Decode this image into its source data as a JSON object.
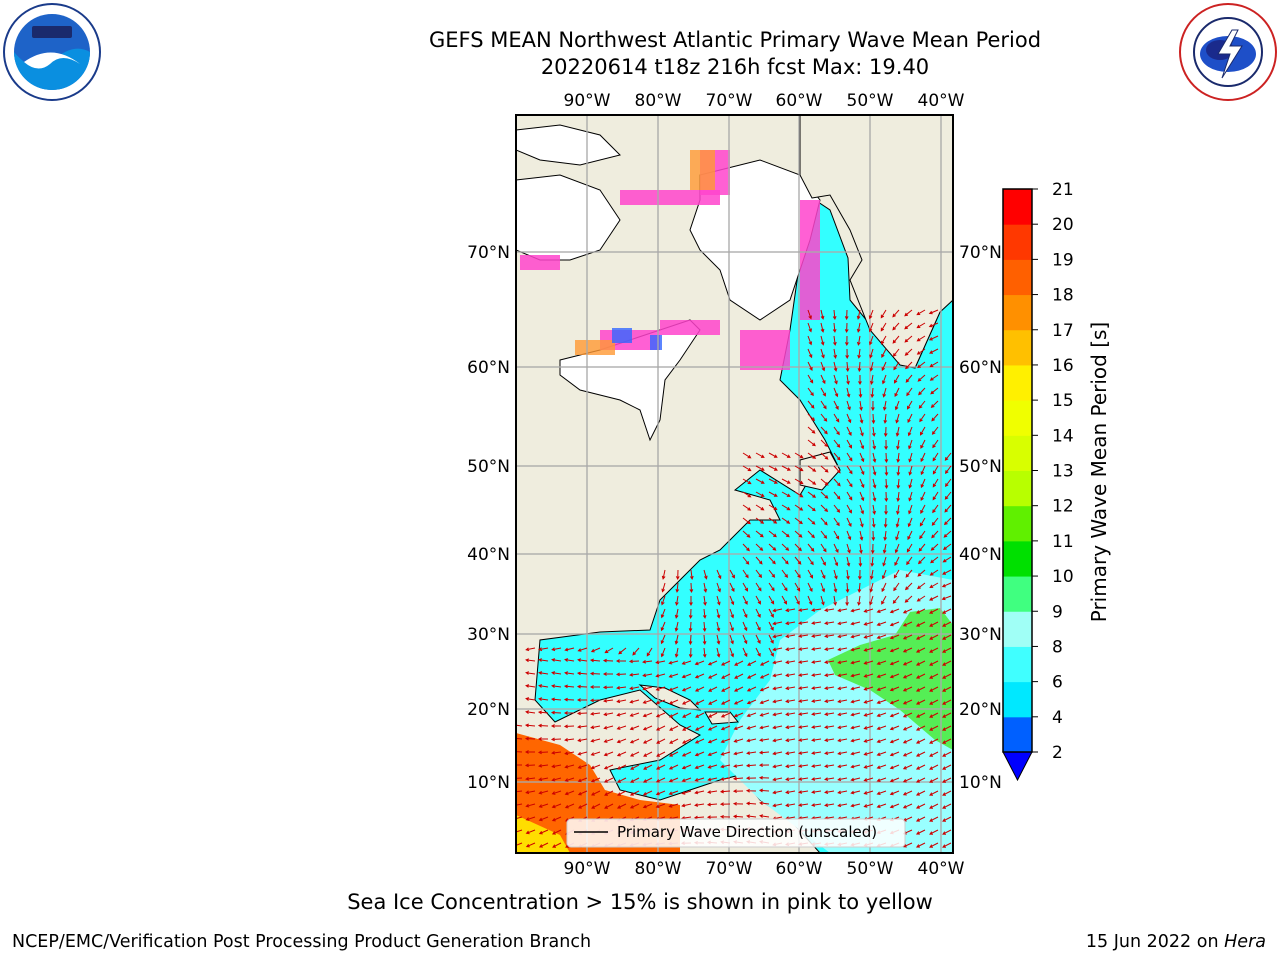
{
  "header": {
    "title_line1": "GEFS MEAN Northwest Atlantic Primary Wave Mean Period",
    "title_line2": "20220614 t18z 216h fcst   Max: 19.40"
  },
  "logos": {
    "left": "noaa-logo",
    "right": "nws-logo"
  },
  "map": {
    "lon_labels": [
      "90°W",
      "80°W",
      "70°W",
      "60°W",
      "50°W",
      "40°W"
    ],
    "lat_labels": [
      "70°N",
      "60°N",
      "50°N",
      "40°N",
      "30°N",
      "20°N",
      "10°N"
    ],
    "legend_label": "Primary Wave Direction (unscaled)",
    "colors": {
      "land": "#efedde",
      "ocean_main": "#33ffff",
      "ocean_light": "#99ffff",
      "green_zone": "#55ee55",
      "orange_zone": "#ff6600",
      "ice_pink": "#ff44cc",
      "arrow": "#cc0000"
    }
  },
  "colorbar": {
    "label": "Primary Wave Mean Period [s]",
    "ticks": [
      "2",
      "4",
      "6",
      "8",
      "9",
      "10",
      "11",
      "12",
      "13",
      "14",
      "15",
      "16",
      "17",
      "18",
      "19",
      "20",
      "21"
    ],
    "colors": [
      "#0060ff",
      "#00e8ff",
      "#40ffff",
      "#a0fff6",
      "#40ff80",
      "#00e000",
      "#60f000",
      "#b8ff00",
      "#d8ff00",
      "#f0ff00",
      "#fff000",
      "#ffc000",
      "#ff9000",
      "#ff6000",
      "#ff3800",
      "#ff0000"
    ],
    "extend_color": "#0000ff"
  },
  "footnote": "Sea Ice Concentration > 15% is shown in pink to yellow",
  "credits": {
    "left": "NCEP/EMC/Verification Post Processing Product Generation Branch",
    "right_date": "15 Jun 2022 on",
    "right_host": "Hera"
  }
}
